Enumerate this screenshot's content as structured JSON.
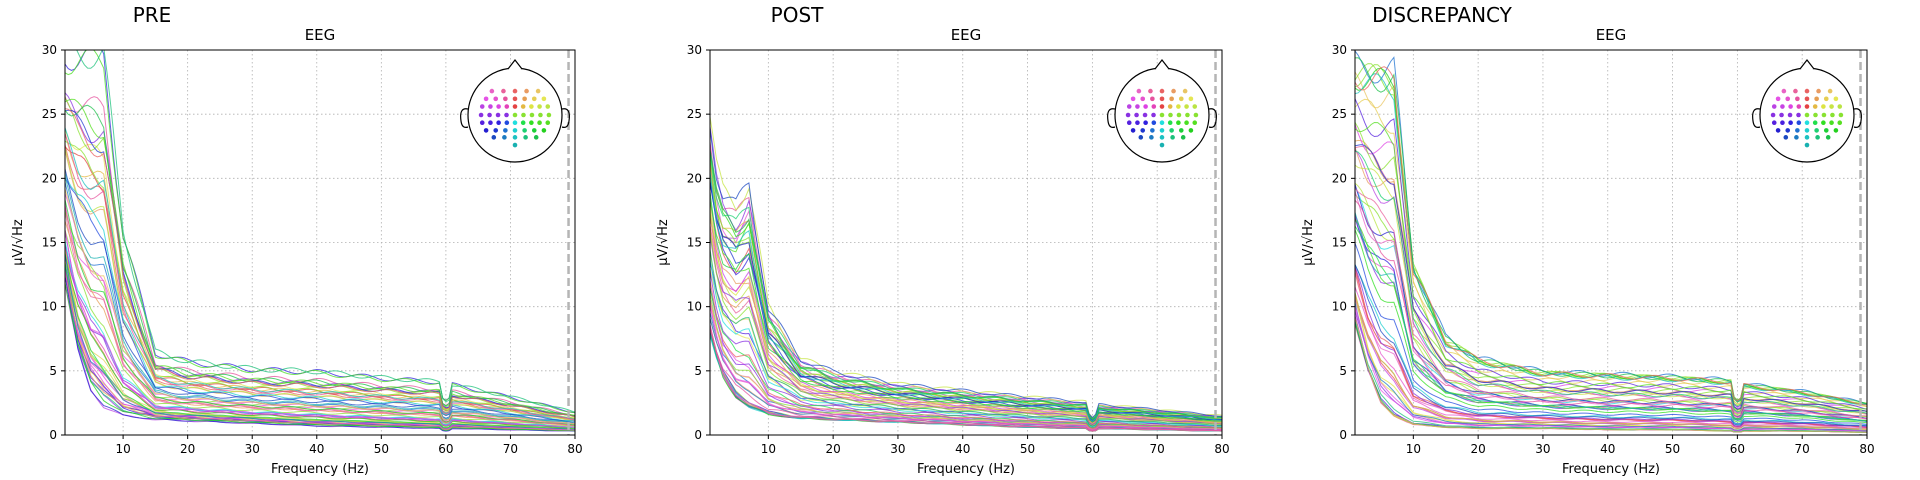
{
  "chart_data": [
    {
      "type": "line",
      "title": "PRE",
      "subtitle": "EEG",
      "xlabel": "Frequency (Hz)",
      "ylabel": "µV/√Hz",
      "xlim": [
        1,
        80
      ],
      "ylim": [
        0,
        30
      ],
      "xticks": [
        10,
        20,
        30,
        40,
        50,
        60,
        70,
        80
      ],
      "yticks": [
        0,
        5,
        10,
        15,
        20,
        25,
        30
      ],
      "grid": true,
      "legend": "top-right sensor-layout inset",
      "dashed_vline_x": 79,
      "line_notch_x": 60,
      "channel_count": 60,
      "envelope": {
        "x": [
          1,
          2,
          3,
          5,
          7,
          10,
          15,
          20,
          30,
          40,
          50,
          59,
          60,
          61,
          70,
          80
        ],
        "y_min": [
          12,
          9,
          6.5,
          3.5,
          2.2,
          1.5,
          1.2,
          1.1,
          0.9,
          0.7,
          0.6,
          0.5,
          0.4,
          0.5,
          0.4,
          0.3
        ],
        "y_max": [
          30,
          30,
          30,
          30,
          30,
          16,
          6.5,
          5.8,
          5.2,
          5.0,
          4.5,
          4.2,
          3.6,
          4.0,
          3.0,
          1.8
        ]
      }
    },
    {
      "type": "line",
      "title": "POST",
      "subtitle": "EEG",
      "xlabel": "Frequency (Hz)",
      "ylabel": "µV/√Hz",
      "xlim": [
        1,
        80
      ],
      "ylim": [
        0,
        30
      ],
      "xticks": [
        10,
        20,
        30,
        40,
        50,
        60,
        70,
        80
      ],
      "yticks": [
        0,
        5,
        10,
        15,
        20,
        25,
        30
      ],
      "grid": true,
      "legend": "top-right sensor-layout inset",
      "dashed_vline_x": 79,
      "line_notch_x": 60,
      "channel_count": 60,
      "envelope": {
        "x": [
          1,
          2,
          3,
          5,
          7,
          10,
          15,
          20,
          30,
          40,
          50,
          59,
          60,
          61,
          70,
          80
        ],
        "y_min": [
          8,
          6,
          4.5,
          3,
          2.2,
          1.6,
          1.3,
          1.2,
          1.0,
          0.8,
          0.6,
          0.5,
          0.4,
          0.5,
          0.4,
          0.3
        ],
        "y_max": [
          25,
          21,
          19,
          18,
          20,
          10,
          6,
          5,
          4,
          3.5,
          3.0,
          2.6,
          1.8,
          2.4,
          2.0,
          1.5
        ]
      }
    },
    {
      "type": "line",
      "title": "DISCREPANCY",
      "subtitle": "EEG",
      "xlabel": "Frequency (Hz)",
      "ylabel": "µV/√Hz",
      "xlim": [
        1,
        80
      ],
      "ylim": [
        0,
        30
      ],
      "xticks": [
        10,
        20,
        30,
        40,
        50,
        60,
        70,
        80
      ],
      "yticks": [
        0,
        5,
        10,
        15,
        20,
        25,
        30
      ],
      "grid": true,
      "legend": "top-right sensor-layout inset",
      "dashed_vline_x": 79,
      "line_notch_x": 60,
      "channel_count": 60,
      "envelope": {
        "x": [
          1,
          2,
          3,
          5,
          7,
          10,
          15,
          20,
          30,
          40,
          50,
          59,
          60,
          61,
          70,
          80
        ],
        "y_min": [
          9,
          7,
          5,
          2.5,
          1.5,
          0.8,
          0.6,
          0.5,
          0.5,
          0.4,
          0.4,
          0.3,
          0.3,
          0.3,
          0.3,
          0.2
        ],
        "y_max": [
          30,
          30,
          30,
          30,
          30,
          14,
          8,
          6.3,
          5.2,
          5.0,
          4.8,
          4.5,
          3.8,
          4.2,
          3.6,
          2.6
        ]
      }
    }
  ]
}
